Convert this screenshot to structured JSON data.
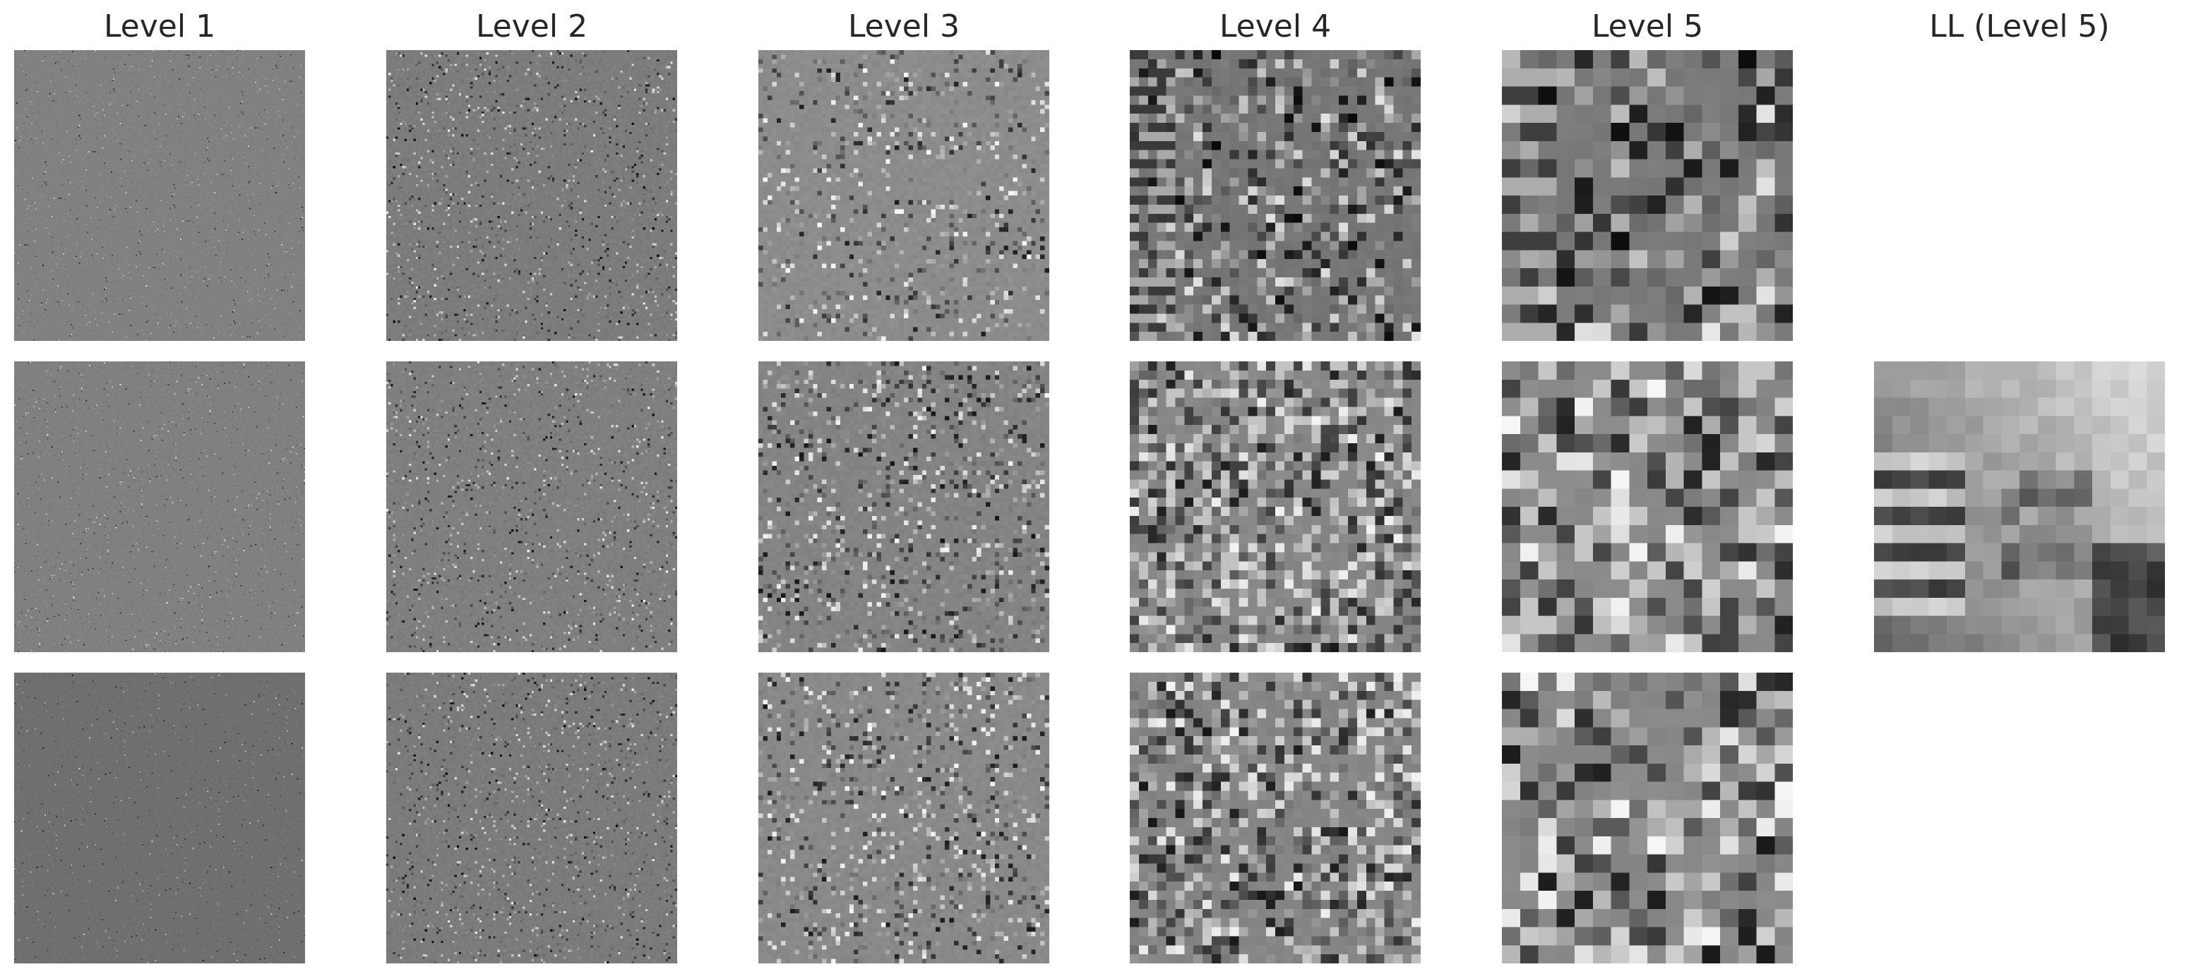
{
  "figure": {
    "columns": [
      {
        "title": "Level 1"
      },
      {
        "title": "Level 2"
      },
      {
        "title": "Level 3"
      },
      {
        "title": "Level 4"
      },
      {
        "title": "Level 5"
      },
      {
        "title": "LL (Level 5)"
      }
    ],
    "panels": [
      {
        "col": 0,
        "row": 0,
        "kind": "detail",
        "grid": 256,
        "base": "#818181",
        "seed": 11,
        "sparsity": 0.985
      },
      {
        "col": 1,
        "row": 0,
        "kind": "detail",
        "grid": 128,
        "base": "#7c7c7c",
        "seed": 12,
        "sparsity": 0.93
      },
      {
        "col": 2,
        "row": 0,
        "kind": "detail",
        "grid": 64,
        "base": "#8c8c8c",
        "seed": 13,
        "sparsity": 0.85
      },
      {
        "col": 3,
        "row": 0,
        "kind": "detail",
        "grid": 32,
        "base": "#767676",
        "seed": 14,
        "sparsity": 0.6
      },
      {
        "col": 4,
        "row": 0,
        "kind": "detail",
        "grid": 16,
        "base": "#7a7a7a",
        "seed": 15,
        "sparsity": 0.4
      },
      {
        "col": 0,
        "row": 1,
        "kind": "detail",
        "grid": 256,
        "base": "#808080",
        "seed": 21,
        "sparsity": 0.985
      },
      {
        "col": 1,
        "row": 1,
        "kind": "detail",
        "grid": 128,
        "base": "#7f7f7f",
        "seed": 22,
        "sparsity": 0.93
      },
      {
        "col": 2,
        "row": 1,
        "kind": "detail",
        "grid": 64,
        "base": "#848484",
        "seed": 23,
        "sparsity": 0.8
      },
      {
        "col": 3,
        "row": 1,
        "kind": "detail",
        "grid": 32,
        "base": "#878787",
        "seed": 24,
        "sparsity": 0.5
      },
      {
        "col": 4,
        "row": 1,
        "kind": "detail",
        "grid": 16,
        "base": "#8a8a8a",
        "seed": 25,
        "sparsity": 0.35
      },
      {
        "col": 5,
        "row": 1,
        "kind": "approx",
        "grid": 16,
        "base": "#9a9a9a",
        "seed": 26,
        "sparsity": 0.0
      },
      {
        "col": 0,
        "row": 2,
        "kind": "detail",
        "grid": 256,
        "base": "#6f6f6f",
        "seed": 31,
        "sparsity": 0.99
      },
      {
        "col": 1,
        "row": 2,
        "kind": "detail",
        "grid": 128,
        "base": "#7b7b7b",
        "seed": 32,
        "sparsity": 0.93
      },
      {
        "col": 2,
        "row": 2,
        "kind": "detail",
        "grid": 64,
        "base": "#898989",
        "seed": 33,
        "sparsity": 0.8
      },
      {
        "col": 3,
        "row": 2,
        "kind": "detail",
        "grid": 32,
        "base": "#858585",
        "seed": 34,
        "sparsity": 0.45
      },
      {
        "col": 4,
        "row": 2,
        "kind": "detail",
        "grid": 16,
        "base": "#888888",
        "seed": 35,
        "sparsity": 0.3
      }
    ]
  }
}
